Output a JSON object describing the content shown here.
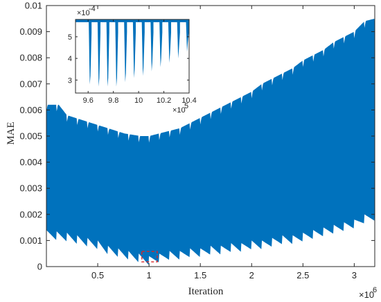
{
  "chart_data": [
    {
      "type": "area",
      "xlabel": "Iteration",
      "ylabel": "MAE",
      "xlim": [
        0,
        3200000
      ],
      "ylim": [
        0,
        0.01
      ],
      "x_exponent_label": "×10",
      "x_exponent_power": "6",
      "x_ticks": [
        {
          "value": 500000,
          "label": "0.5"
        },
        {
          "value": 1000000,
          "label": "1"
        },
        {
          "value": 1500000,
          "label": "1.5"
        },
        {
          "value": 2000000,
          "label": "2"
        },
        {
          "value": 2500000,
          "label": "2.5"
        },
        {
          "value": 3000000,
          "label": "3"
        }
      ],
      "y_ticks": [
        {
          "value": 0,
          "label": "0"
        },
        {
          "value": 0.001,
          "label": "0.001"
        },
        {
          "value": 0.002,
          "label": "0.002"
        },
        {
          "value": 0.003,
          "label": "0.003"
        },
        {
          "value": 0.004,
          "label": "0.004"
        },
        {
          "value": 0.005,
          "label": "0.005"
        },
        {
          "value": 0.006,
          "label": "0.006"
        },
        {
          "value": 0.007,
          "label": "0.007"
        },
        {
          "value": 0.008,
          "label": "0.008"
        },
        {
          "value": 0.009,
          "label": "0.009"
        },
        {
          "value": 0.01,
          "label": "0.01"
        }
      ],
      "series_color": "#0072BD",
      "upper_envelope": {
        "x": [
          0,
          120000,
          200000,
          280000,
          360000,
          440000,
          520000,
          600000,
          680000,
          760000,
          840000,
          920000,
          1000000,
          1100000,
          1200000,
          1300000,
          1400000,
          1500000,
          1600000,
          1700000,
          1800000,
          1900000,
          2000000,
          2100000,
          2200000,
          2300000,
          2400000,
          2500000,
          2600000,
          2700000,
          2800000,
          2900000,
          3000000,
          3100000,
          3200000
        ],
        "y": [
          0.0062,
          0.0062,
          0.0058,
          0.0057,
          0.0056,
          0.0055,
          0.0054,
          0.0053,
          0.0052,
          0.0051,
          0.00505,
          0.005,
          0.005,
          0.0051,
          0.0052,
          0.0053,
          0.0055,
          0.0057,
          0.0059,
          0.0061,
          0.0063,
          0.0065,
          0.0067,
          0.007,
          0.0072,
          0.0074,
          0.0076,
          0.0079,
          0.0081,
          0.0083,
          0.0086,
          0.0088,
          0.009,
          0.0094,
          0.0095
        ]
      },
      "lower_envelope": {
        "x": [
          0,
          200000,
          400000,
          500000,
          600000,
          700000,
          800000,
          900000,
          1000000,
          1100000,
          1200000,
          1300000,
          1400000,
          1500000,
          1600000,
          1700000,
          1800000,
          1900000,
          2000000,
          2100000,
          2200000,
          2300000,
          2400000,
          2500000,
          2600000,
          2700000,
          2800000,
          2900000,
          3000000,
          3100000,
          3200000
        ],
        "y": [
          0.0012,
          0.0011,
          0.0009,
          0.0008,
          0.0006,
          0.0005,
          0.0004,
          0.0003,
          0.0002,
          0.0003,
          0.0004,
          0.0004,
          0.0005,
          0.0005,
          0.0006,
          0.0006,
          0.0007,
          0.0007,
          0.0008,
          0.0008,
          0.0009,
          0.001,
          0.001,
          0.0011,
          0.0012,
          0.0013,
          0.0014,
          0.0015,
          0.0016,
          0.0018,
          0.0019
        ]
      },
      "highlight_box": {
        "x": [
          930000,
          1080000
        ],
        "y": [
          0.00018,
          0.00058
        ],
        "color": "#d62728"
      }
    },
    {
      "type": "area",
      "role": "inset",
      "xlim": [
        950000,
        1040000
      ],
      "ylim": [
        0.00024,
        0.00058
      ],
      "x_exponent_label": "×10",
      "x_exponent_power": "5",
      "y_exponent_label": "×10",
      "y_exponent_power": "-4",
      "x_ticks": [
        {
          "value": 960000,
          "label": "9.6"
        },
        {
          "value": 980000,
          "label": "9.8"
        },
        {
          "value": 1000000,
          "label": "10"
        },
        {
          "value": 1020000,
          "label": "10.2"
        },
        {
          "value": 1040000,
          "label": "10.4"
        }
      ],
      "y_ticks": [
        {
          "value": 0.0003,
          "label": "3"
        },
        {
          "value": 0.0004,
          "label": "4"
        },
        {
          "value": 0.0005,
          "label": "5"
        }
      ],
      "series_color": "#0072BD",
      "spikes": [
        {
          "x": 961000,
          "min": 0.00028
        },
        {
          "x": 968000,
          "min": 0.00027
        },
        {
          "x": 975000,
          "min": 0.00027
        },
        {
          "x": 982000,
          "min": 0.00027
        },
        {
          "x": 989000,
          "min": 0.00029
        },
        {
          "x": 996000,
          "min": 0.00031
        },
        {
          "x": 1003000,
          "min": 0.00032
        },
        {
          "x": 1010000,
          "min": 0.00034
        },
        {
          "x": 1017000,
          "min": 0.00036
        },
        {
          "x": 1024000,
          "min": 0.00038
        },
        {
          "x": 1031000,
          "min": 0.0004
        },
        {
          "x": 1038000,
          "min": 0.00043
        }
      ]
    }
  ]
}
